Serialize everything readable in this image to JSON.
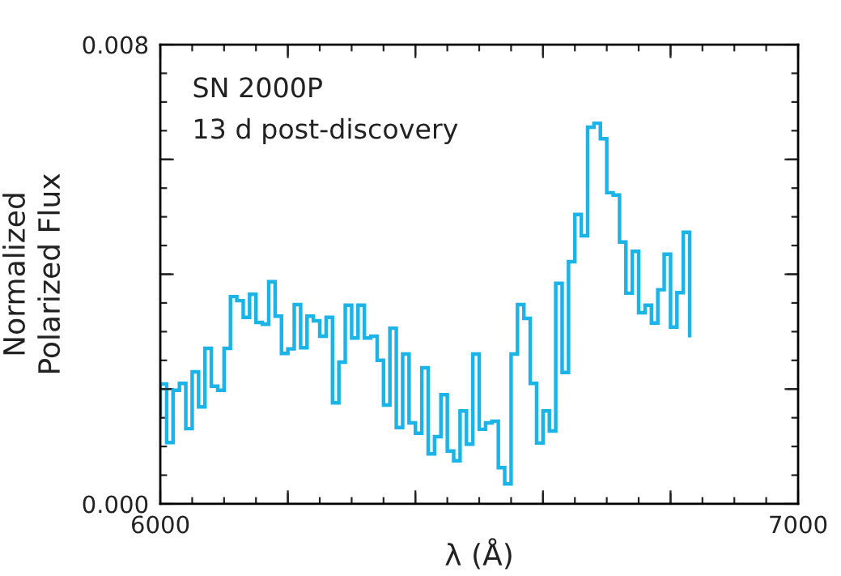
{
  "chart_data": {
    "type": "step",
    "xlabel": "λ (Å)",
    "ylabel": "Normalized\nPolarized Flux",
    "annotations": [
      "SN 2000P",
      "13 d post-discovery"
    ],
    "xlim": [
      6000,
      7000
    ],
    "xticks": [
      6000,
      {
        "value": 6200,
        "label": null
      },
      {
        "value": 6400,
        "label": null
      },
      {
        "value": 6600,
        "label": null
      },
      {
        "value": 6800,
        "label": null
      },
      7000
    ],
    "ylim": [
      0.0,
      0.008
    ],
    "yticks": [
      {
        "value": 0.0,
        "label": "0.000"
      },
      {
        "value": 0.002,
        "label": null
      },
      {
        "value": 0.004,
        "label": null
      },
      {
        "value": 0.006,
        "label": null
      },
      {
        "value": 0.008,
        "label": "0.008"
      }
    ],
    "grid": false,
    "line_style": "solid",
    "marker": "none",
    "series": [
      {
        "color": "#1ab4e8",
        "x": [
          6000,
          6000,
          6010,
          6020,
          6030,
          6040,
          6050,
          6060,
          6070,
          6080,
          6090,
          6100,
          6110,
          6120,
          6130,
          6140,
          6150,
          6160,
          6170,
          6180,
          6190,
          6200,
          6210,
          6220,
          6230,
          6240,
          6250,
          6260,
          6270,
          6280,
          6290,
          6300,
          6310,
          6320,
          6330,
          6340,
          6350,
          6360,
          6370,
          6380,
          6390,
          6400,
          6410,
          6420,
          6430,
          6440,
          6450,
          6460,
          6470,
          6480,
          6490,
          6500,
          6510,
          6520,
          6530,
          6540,
          6550,
          6560,
          6570,
          6580,
          6590,
          6600,
          6610,
          6620,
          6630,
          6640,
          6650,
          6660,
          6670,
          6680,
          6690,
          6700,
          6710,
          6720,
          6730,
          6740,
          6750,
          6760,
          6770,
          6780,
          6790,
          6800,
          6810,
          6820,
          6830
        ],
        "values": [
          0.00155,
          0.00209,
          0.00107,
          0.00198,
          0.0021,
          0.00131,
          0.0023,
          0.00169,
          0.00271,
          0.00205,
          0.00198,
          0.00271,
          0.00361,
          0.00354,
          0.00325,
          0.00365,
          0.00316,
          0.00313,
          0.00387,
          0.00327,
          0.00262,
          0.0027,
          0.00347,
          0.00272,
          0.00327,
          0.00319,
          0.00292,
          0.00325,
          0.00176,
          0.00247,
          0.00346,
          0.00289,
          0.00346,
          0.00289,
          0.00292,
          0.0025,
          0.00172,
          0.00306,
          0.00133,
          0.00261,
          0.00141,
          0.00123,
          0.00237,
          0.00087,
          0.00117,
          0.0019,
          0.00092,
          0.00075,
          0.00162,
          0.00104,
          0.00261,
          0.0013,
          0.00141,
          0.00144,
          0.00063,
          0.00035,
          0.00261,
          0.00347,
          0.00323,
          0.0021,
          0.00106,
          0.00162,
          0.00127,
          0.00384,
          0.00229,
          0.00422,
          0.00504,
          0.00467,
          0.00656,
          0.00663,
          0.00636,
          0.00542,
          0.00538,
          0.00456,
          0.00367,
          0.0044,
          0.00333,
          0.00346,
          0.00315,
          0.00373,
          0.00435,
          0.00308,
          0.00368,
          0.00473,
          0.00293
        ]
      }
    ]
  }
}
